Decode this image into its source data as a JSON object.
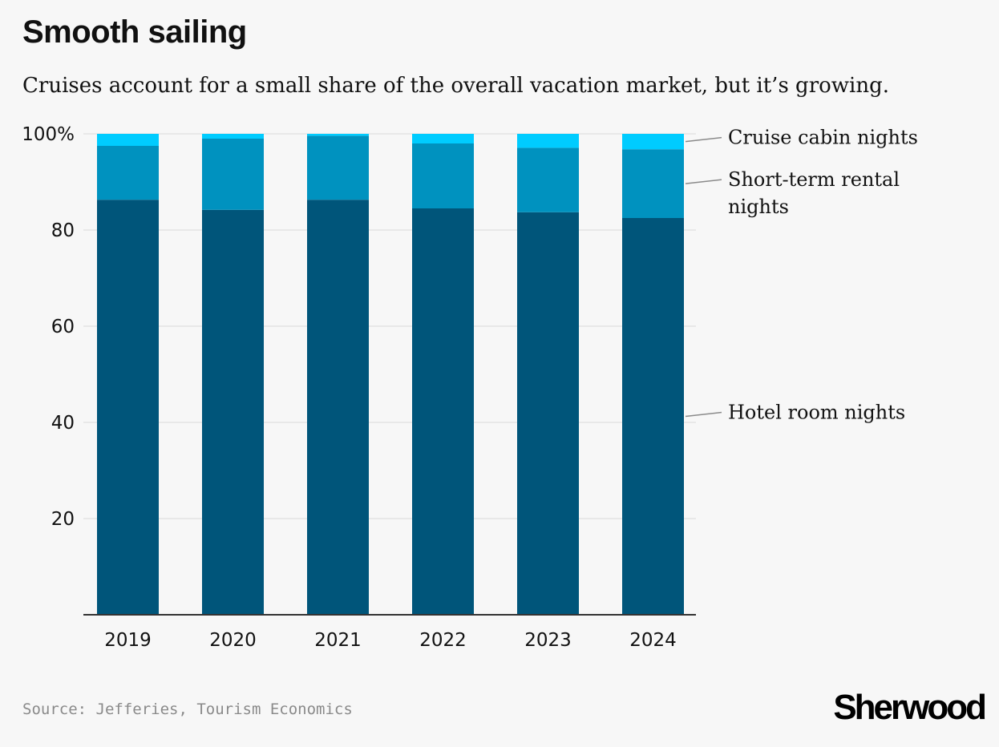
{
  "title": "Smooth sailing",
  "subtitle": "Cruises account for a small share of the overall vacation market, but it’s growing.",
  "source": "Source: Jefferies, Tourism Economics",
  "brand": "Sherwood",
  "chart_data": {
    "type": "bar",
    "stacked": true,
    "categories": [
      "2019",
      "2020",
      "2021",
      "2022",
      "2023",
      "2024"
    ],
    "series": [
      {
        "name": "Hotel room nights",
        "values": [
          86.3,
          84.2,
          86.3,
          84.5,
          83.7,
          82.5
        ],
        "color": "#00557a"
      },
      {
        "name": "Short-term rental nights",
        "values": [
          11.2,
          14.8,
          13.3,
          13.5,
          13.4,
          14.3
        ],
        "color": "#0092bf"
      },
      {
        "name": "Cruise cabin nights",
        "values": [
          2.5,
          1.0,
          0.4,
          2.0,
          2.9,
          3.2
        ],
        "color": "#00ccff"
      }
    ],
    "ylim": [
      0,
      100
    ],
    "yticks": [
      20,
      40,
      60,
      80,
      100
    ],
    "ytick_labels": [
      "20",
      "40",
      "60",
      "80",
      "100%"
    ],
    "grid": true,
    "legend": "direct labels at right"
  }
}
